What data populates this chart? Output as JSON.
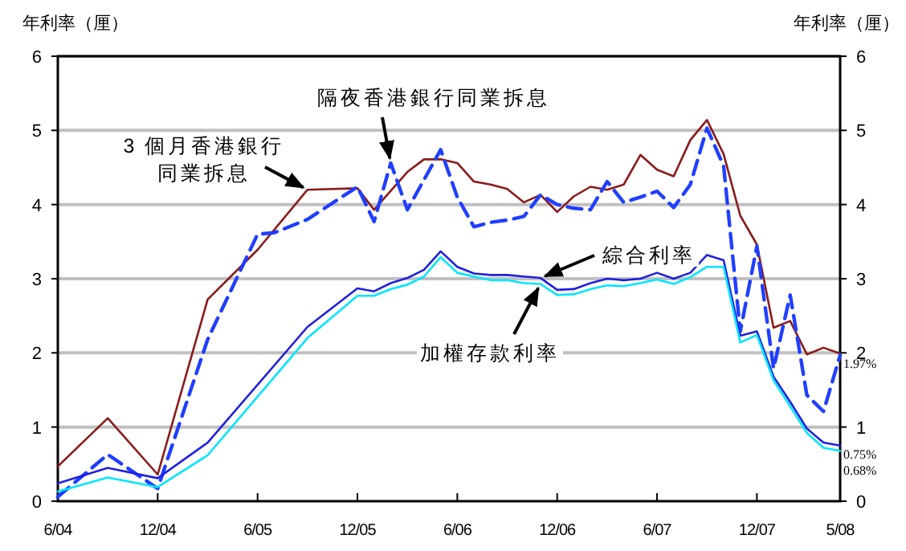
{
  "chart_data": {
    "type": "line",
    "ylabel": "年利率（厘）",
    "y2label": "年利率（厘）",
    "xlim": [
      "2004-06",
      "2008-05"
    ],
    "xticks": [
      {
        "value": "2004-06",
        "label": "6/04"
      },
      {
        "value": "2004-12",
        "label": "12/04"
      },
      {
        "value": "2005-06",
        "label": "6/05"
      },
      {
        "value": "2005-12",
        "label": "12/05"
      },
      {
        "value": "2006-06",
        "label": "6/06"
      },
      {
        "value": "2006-12",
        "label": "12/06"
      },
      {
        "value": "2007-06",
        "label": "6/07"
      },
      {
        "value": "2007-12",
        "label": "12/07"
      },
      {
        "value": "2008-05",
        "label": "5/08"
      }
    ],
    "ylim": [
      0,
      6
    ],
    "yticks": [
      0,
      1,
      2,
      3,
      4,
      5,
      6
    ],
    "y2lim": [
      0,
      6
    ],
    "y2ticks": [
      0,
      1,
      2,
      3,
      4,
      5,
      6
    ],
    "grid": "y",
    "marker": "none",
    "series": [
      {
        "color": "#8b1a1a",
        "line_style": "solid",
        "x": [
          "2004-06",
          "2004-09",
          "2004-12",
          "2005-03",
          "2005-06",
          "2005-09",
          "2005-12",
          "2006-01",
          "2006-03",
          "2006-04",
          "2006-05",
          "2006-06",
          "2006-07",
          "2006-08",
          "2006-09",
          "2006-10",
          "2006-11",
          "2006-12",
          "2007-01",
          "2007-02",
          "2007-03",
          "2007-04",
          "2007-05",
          "2007-06",
          "2007-07",
          "2007-08",
          "2007-09",
          "2007-10",
          "2007-11",
          "2007-12",
          "2008-01",
          "2008-02",
          "2008-03",
          "2008-04",
          "2008-05"
        ],
        "values": [
          0.47,
          1.12,
          0.36,
          2.72,
          3.39,
          4.2,
          4.22,
          3.93,
          4.44,
          4.61,
          4.61,
          4.56,
          4.31,
          4.27,
          4.21,
          4.03,
          4.13,
          3.9,
          4.11,
          4.24,
          4.2,
          4.27,
          4.67,
          4.47,
          4.38,
          4.87,
          5.14,
          4.68,
          3.85,
          3.46,
          2.34,
          2.43,
          1.98,
          2.07,
          1.99
        ]
      },
      {
        "color": "#1f3fff",
        "line_style": "dashed",
        "x": [
          "2004-06",
          "2004-09",
          "2004-12",
          "2005-03",
          "2005-06",
          "2005-07",
          "2005-09",
          "2005-12",
          "2006-01",
          "2006-02",
          "2006-03",
          "2006-05",
          "2006-06",
          "2006-07",
          "2006-08",
          "2006-09",
          "2006-10",
          "2006-11",
          "2006-12",
          "2007-01",
          "2007-02",
          "2007-03",
          "2007-04",
          "2007-05",
          "2007-06",
          "2007-07",
          "2007-08",
          "2007-09",
          "2007-10",
          "2007-11",
          "2007-12",
          "2008-01",
          "2008-02",
          "2008-03",
          "2008-04",
          "2008-05"
        ],
        "values": [
          0.06,
          0.63,
          0.17,
          2.18,
          3.6,
          3.62,
          3.8,
          4.24,
          3.77,
          4.56,
          3.93,
          4.74,
          4.1,
          3.7,
          3.76,
          3.79,
          3.84,
          4.13,
          4.0,
          3.95,
          3.93,
          4.31,
          4.03,
          4.1,
          4.18,
          3.96,
          4.27,
          5.03,
          4.52,
          2.29,
          3.44,
          1.79,
          2.78,
          1.43,
          1.21,
          1.97
        ],
        "value_labels": [
          null,
          null,
          null,
          null,
          null,
          null,
          null,
          null,
          null,
          null,
          null,
          null,
          null,
          null,
          null,
          null,
          null,
          null,
          null,
          null,
          null,
          null,
          null,
          null,
          null,
          null,
          null,
          null,
          null,
          null,
          null,
          null,
          null,
          null,
          null,
          "1.97%"
        ]
      },
      {
        "color": "#2020e0",
        "line_style": "solid",
        "x": [
          "2004-06",
          "2004-09",
          "2004-12",
          "2005-03",
          "2005-09",
          "2005-12",
          "2006-01",
          "2006-02",
          "2006-03",
          "2006-04",
          "2006-05",
          "2006-06",
          "2006-07",
          "2006-08",
          "2006-09",
          "2006-10",
          "2006-11",
          "2006-12",
          "2007-01",
          "2007-02",
          "2007-03",
          "2007-04",
          "2007-05",
          "2007-06",
          "2007-07",
          "2007-08",
          "2007-09",
          "2007-10",
          "2007-11",
          "2007-12",
          "2008-01",
          "2008-02",
          "2008-03",
          "2008-04",
          "2008-05"
        ],
        "values": [
          0.24,
          0.45,
          0.31,
          0.79,
          2.35,
          2.87,
          2.83,
          2.94,
          3.01,
          3.12,
          3.37,
          3.16,
          3.07,
          3.05,
          3.05,
          3.03,
          3.01,
          2.85,
          2.86,
          2.94,
          3.0,
          2.98,
          3.0,
          3.08,
          3.0,
          3.08,
          3.32,
          3.25,
          2.23,
          2.29,
          1.68,
          1.34,
          0.98,
          0.79,
          0.75
        ],
        "value_labels": [
          null,
          null,
          null,
          null,
          null,
          null,
          null,
          null,
          null,
          null,
          null,
          null,
          null,
          null,
          null,
          null,
          null,
          null,
          null,
          null,
          null,
          null,
          null,
          null,
          null,
          null,
          null,
          null,
          null,
          null,
          null,
          null,
          null,
          null,
          "0.75%"
        ]
      },
      {
        "color": "#00e5ff",
        "line_style": "solid",
        "x": [
          "2004-06",
          "2004-09",
          "2004-12",
          "2005-03",
          "2005-09",
          "2005-12",
          "2006-01",
          "2006-02",
          "2006-03",
          "2006-04",
          "2006-05",
          "2006-06",
          "2006-07",
          "2006-08",
          "2006-09",
          "2006-10",
          "2006-11",
          "2006-12",
          "2007-01",
          "2007-02",
          "2007-03",
          "2007-04",
          "2007-05",
          "2007-06",
          "2007-07",
          "2007-08",
          "2007-09",
          "2007-10",
          "2007-11",
          "2007-12",
          "2008-01",
          "2008-02",
          "2008-03",
          "2008-04",
          "2008-05"
        ],
        "values": [
          0.13,
          0.32,
          0.19,
          0.62,
          2.2,
          2.77,
          2.77,
          2.86,
          2.92,
          3.03,
          3.29,
          3.08,
          3.03,
          2.98,
          2.98,
          2.94,
          2.93,
          2.78,
          2.79,
          2.86,
          2.91,
          2.9,
          2.94,
          2.99,
          2.93,
          3.02,
          3.16,
          3.16,
          2.14,
          2.24,
          1.63,
          1.28,
          0.92,
          0.72,
          0.68
        ],
        "value_labels": [
          null,
          null,
          null,
          null,
          null,
          null,
          null,
          null,
          null,
          null,
          null,
          null,
          null,
          null,
          null,
          null,
          null,
          null,
          null,
          null,
          null,
          null,
          null,
          null,
          null,
          null,
          null,
          null,
          null,
          null,
          null,
          null,
          null,
          null,
          "0.68%"
        ]
      }
    ],
    "annotations": [
      {
        "text": "3 個月香港銀行同業拆息",
        "x": "2005-09",
        "y": 4.2
      },
      {
        "text": "隔夜香港銀行同業拆息",
        "x": "2006-02",
        "y": 4.56
      },
      {
        "text": "綜合利率",
        "x": "2006-11",
        "y": 3.01
      },
      {
        "text": "加權存款利率",
        "x": "2006-11",
        "y": 2.93
      }
    ]
  }
}
